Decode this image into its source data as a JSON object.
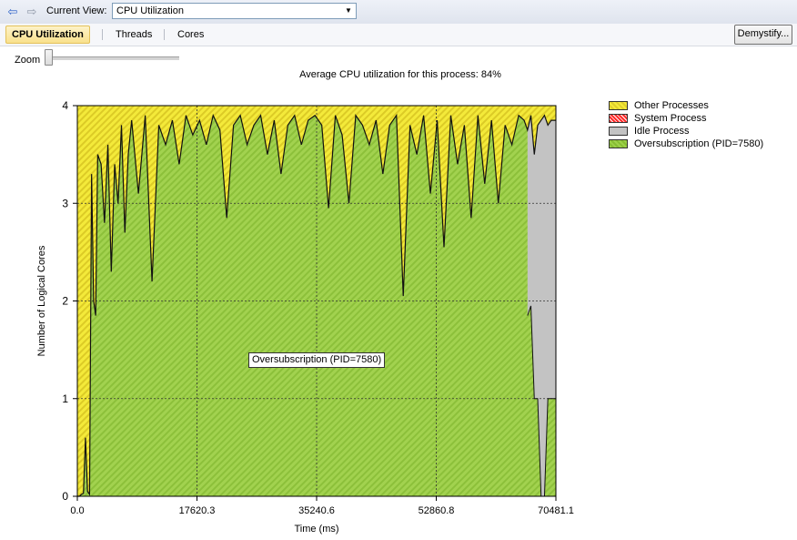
{
  "toolbar": {
    "current_view_label": "Current View:",
    "current_view_value": "CPU Utilization"
  },
  "tabs": [
    {
      "label": "CPU Utilization",
      "active": true
    },
    {
      "label": "Threads",
      "active": false
    },
    {
      "label": "Cores",
      "active": false
    }
  ],
  "demystify_label": "Demystify...",
  "zoom": {
    "label": "Zoom",
    "level": 0
  },
  "summary": "Average CPU utilization for this process: 84%",
  "legend": [
    {
      "label": "Other Processes",
      "color": "#f4ea3a"
    },
    {
      "label": "System Process",
      "color": "#ff2a2a"
    },
    {
      "label": "Idle Process",
      "color": "#c3c3c3"
    },
    {
      "label": "Oversubscription (PID=7580)",
      "color": "#9dd04a"
    }
  ],
  "tooltip": "Oversubscription (PID=7580)",
  "chart_data": {
    "type": "area",
    "xlabel": "Time (ms)",
    "ylabel": "Number of Logical Cores",
    "xlim": [
      0,
      70481.1
    ],
    "ylim": [
      0,
      4
    ],
    "x_ticks": [
      "0.0",
      "17620.3",
      "35240.6",
      "52860.8",
      "70481.1"
    ],
    "y_ticks": [
      "0",
      "1",
      "2",
      "3",
      "4"
    ],
    "grid": true,
    "legend_position": "right",
    "series": [
      {
        "name": "Oversubscription (PID=7580)",
        "x": [
          0,
          300,
          600,
          900,
          1200,
          1500,
          1800,
          2100,
          2400,
          2700,
          3000,
          3500,
          4000,
          4500,
          5000,
          5500,
          6000,
          6500,
          7000,
          7500,
          8000,
          9000,
          10000,
          11000,
          12000,
          13000,
          14000,
          15000,
          16000,
          17000,
          18000,
          19000,
          20000,
          21000,
          22000,
          23000,
          24000,
          25000,
          26000,
          27000,
          28000,
          29000,
          30000,
          31000,
          32000,
          33000,
          34000,
          35000,
          36000,
          37000,
          38000,
          39000,
          40000,
          41000,
          42000,
          43000,
          44000,
          45000,
          46000,
          47000,
          48000,
          49000,
          50000,
          51000,
          52000,
          53000,
          54000,
          55000,
          56000,
          57000,
          58000,
          59000,
          60000,
          61000,
          62000,
          63000,
          64000,
          65000,
          65800,
          66300,
          66800,
          67300,
          67800,
          68300,
          68800,
          69300,
          69800,
          70481
        ],
        "y": [
          0,
          0,
          0.02,
          0.03,
          0.6,
          0.05,
          0.02,
          3.3,
          2.0,
          1.85,
          3.5,
          3.4,
          2.8,
          3.6,
          2.3,
          3.4,
          3.0,
          3.8,
          2.7,
          3.5,
          3.85,
          3.1,
          3.9,
          2.2,
          3.8,
          3.6,
          3.85,
          3.4,
          3.9,
          3.7,
          3.85,
          3.6,
          3.9,
          3.75,
          2.85,
          3.8,
          3.9,
          3.6,
          3.8,
          3.9,
          3.5,
          3.85,
          3.3,
          3.8,
          3.9,
          3.6,
          3.85,
          3.9,
          3.8,
          2.95,
          3.9,
          3.7,
          3.0,
          3.9,
          3.8,
          3.6,
          3.85,
          3.3,
          3.8,
          3.9,
          2.05,
          3.8,
          3.5,
          3.9,
          3.1,
          3.85,
          2.55,
          3.9,
          3.4,
          3.8,
          2.85,
          3.9,
          3.2,
          3.85,
          3.0,
          3.8,
          3.6,
          3.9,
          3.85,
          3.75,
          3.9,
          3.5,
          3.8,
          3.85,
          3.9,
          3.8,
          3.85,
          3.85
        ]
      },
      {
        "name": "Idle Process",
        "x": [
          66300,
          66800,
          67300,
          67800,
          68300,
          68800,
          69300,
          69800,
          70481
        ],
        "y": [
          1.85,
          1.95,
          1.0,
          1.0,
          0,
          0,
          1.0,
          1.0,
          1.0
        ]
      }
    ]
  }
}
